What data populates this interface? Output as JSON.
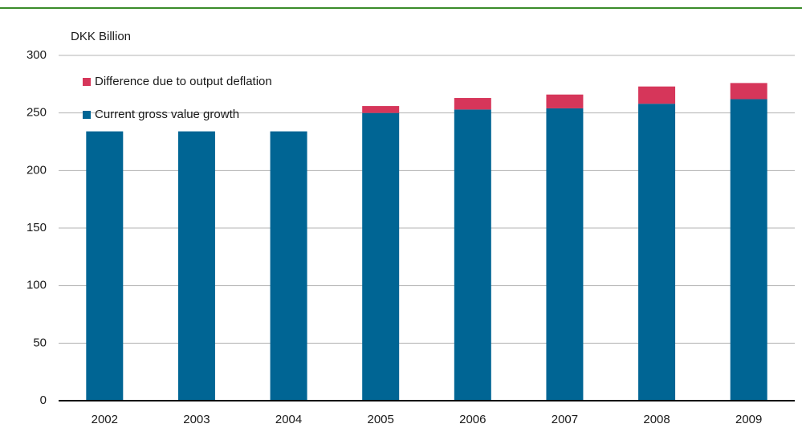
{
  "chart_data": {
    "type": "stacked_bar",
    "y_label": "DKK Billion",
    "categories": [
      "2002",
      "2003",
      "2004",
      "2005",
      "2006",
      "2007",
      "2008",
      "2009"
    ],
    "series": [
      {
        "name": "Current gross value growth",
        "color": "#006594",
        "values": [
          234,
          234,
          234,
          250,
          253,
          254,
          258,
          262
        ]
      },
      {
        "name": "Difference due to output deflation",
        "color": "#d6365a",
        "values": [
          0,
          0,
          0,
          6,
          10,
          12,
          15,
          14
        ]
      }
    ],
    "ylim": [
      0,
      300
    ],
    "yticks": [
      0,
      50,
      100,
      150,
      200,
      250,
      300
    ],
    "grid": true
  }
}
